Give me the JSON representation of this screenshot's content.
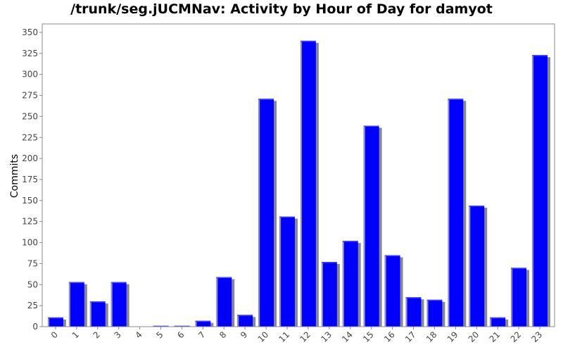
{
  "chart_data": {
    "type": "bar",
    "title": "/trunk/seg.jUCMNav: Activity by Hour of Day for damyot",
    "xlabel": "",
    "ylabel": "Commits",
    "categories": [
      "0",
      "1",
      "2",
      "3",
      "4",
      "5",
      "6",
      "7",
      "8",
      "9",
      "10",
      "11",
      "12",
      "13",
      "14",
      "15",
      "16",
      "17",
      "18",
      "19",
      "20",
      "21",
      "22",
      "23"
    ],
    "values": [
      11,
      53,
      30,
      53,
      0,
      1,
      1,
      7,
      59,
      14,
      271,
      131,
      340,
      77,
      102,
      239,
      85,
      35,
      32,
      271,
      144,
      11,
      70,
      323
    ],
    "ylim": [
      0,
      360
    ],
    "yticks": [
      0,
      25,
      50,
      75,
      100,
      125,
      150,
      175,
      200,
      225,
      250,
      275,
      300,
      325,
      350
    ],
    "grid": false,
    "legend": "none",
    "bar_color": "#0000ff",
    "shadow_color": "#888888"
  }
}
